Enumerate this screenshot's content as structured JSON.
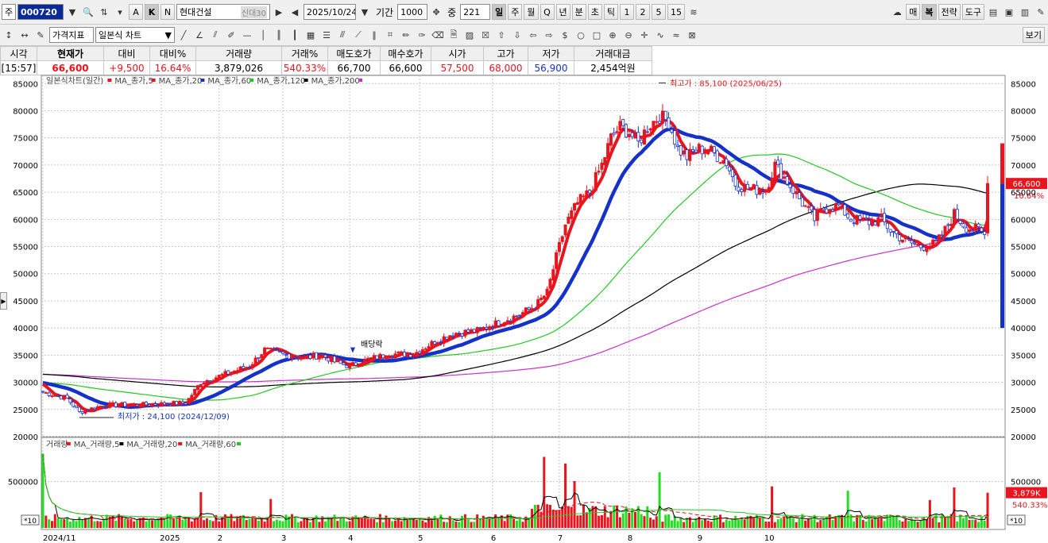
{
  "toolbar": {
    "market_label": "주",
    "code": "000720",
    "abk_buttons": [
      "A",
      "K",
      "N"
    ],
    "stock_name": "현대건설",
    "credit_badge": "신",
    "credit_badge2": "대",
    "credit_badge3": "30",
    "date": "2025/10/24",
    "period_label": "기간",
    "period_value": "1000",
    "middle_label": "중",
    "middle_value": "221",
    "intervals": [
      "일",
      "주",
      "월",
      "Q",
      "년",
      "분",
      "초",
      "틱",
      "1",
      "2",
      "5",
      "15"
    ],
    "right_buttons": [
      "매",
      "복",
      "전략",
      "도구"
    ]
  },
  "toolbar2": {
    "price_indicator": "가격지표",
    "chart_type": "일본식 차트",
    "view_button": "보기"
  },
  "quote": {
    "headers": [
      "시각",
      "현재가",
      "대비",
      "대비%",
      "거래량",
      "거래%",
      "매도호가",
      "매수호가",
      "시가",
      "고가",
      "저가",
      "거래대금"
    ],
    "values": [
      "[15:57]",
      "66,600",
      "+9,500",
      "16.64%",
      "3,879,026",
      "540.33%",
      "66,700",
      "66,600",
      "57,500",
      "68,000",
      "56,900",
      "2,454억원"
    ]
  },
  "colors": {
    "up": "#e8141e",
    "down": "#1432c8",
    "ma5": "#e8141e",
    "ma20": "#1432c8",
    "ma60": "#22c822",
    "ma120": "#000000",
    "ma200": "#c832c8",
    "vol_up": "#e8141e",
    "vol_down": "#22dd22"
  },
  "chart_data": [
    {
      "type": "candlestick",
      "legend": [
        {
          "name": "일본식차트(일간)",
          "color": "#e8141e"
        },
        {
          "name": "MA_종가,5",
          "color": "#e8141e"
        },
        {
          "name": "MA_종가,20",
          "color": "#1432c8"
        },
        {
          "name": "MA_종가,60",
          "color": "#22c822"
        },
        {
          "name": "MA_종가,120",
          "color": "#000000"
        },
        {
          "name": "MA_종가,200",
          "color": "#c832c8"
        }
      ],
      "y_ticks": [
        "85000",
        "80000",
        "75000",
        "70000",
        "65000",
        "60000",
        "55000",
        "50000",
        "45000",
        "40000",
        "35000",
        "30000",
        "25000",
        "20000"
      ],
      "ylim": [
        20000,
        86500
      ],
      "x_ticks": [
        "2024/11",
        "2025",
        "2",
        "3",
        "4",
        "5",
        "6",
        "7",
        "8",
        "9",
        "10"
      ],
      "anchors": [
        {
          "i": 0,
          "v": 28200
        },
        {
          "i": 8,
          "v": 27000
        },
        {
          "i": 12,
          "v": 24500
        },
        {
          "i": 20,
          "v": 25800
        },
        {
          "i": 34,
          "v": 25900
        },
        {
          "i": 47,
          "v": 26200
        },
        {
          "i": 52,
          "v": 30000
        },
        {
          "i": 60,
          "v": 31500
        },
        {
          "i": 68,
          "v": 33000
        },
        {
          "i": 73,
          "v": 36000
        },
        {
          "i": 80,
          "v": 35000
        },
        {
          "i": 86,
          "v": 34500
        },
        {
          "i": 92,
          "v": 35000
        },
        {
          "i": 97,
          "v": 33500
        },
        {
          "i": 101,
          "v": 33000
        },
        {
          "i": 107,
          "v": 34200
        },
        {
          "i": 114,
          "v": 35200
        },
        {
          "i": 122,
          "v": 35200
        },
        {
          "i": 129,
          "v": 37500
        },
        {
          "i": 135,
          "v": 39000
        },
        {
          "i": 143,
          "v": 39500
        },
        {
          "i": 150,
          "v": 41000
        },
        {
          "i": 157,
          "v": 42500
        },
        {
          "i": 162,
          "v": 44000
        },
        {
          "i": 166,
          "v": 46500
        },
        {
          "i": 169,
          "v": 53000
        },
        {
          "i": 172,
          "v": 59000
        },
        {
          "i": 176,
          "v": 63000
        },
        {
          "i": 180,
          "v": 65000
        },
        {
          "i": 184,
          "v": 70000
        },
        {
          "i": 187,
          "v": 75000
        },
        {
          "i": 190,
          "v": 77000
        },
        {
          "i": 193,
          "v": 76000
        },
        {
          "i": 196,
          "v": 74000
        },
        {
          "i": 199,
          "v": 77000
        },
        {
          "i": 203,
          "v": 79000
        },
        {
          "i": 206,
          "v": 78000
        },
        {
          "i": 209,
          "v": 73000
        },
        {
          "i": 212,
          "v": 71500
        },
        {
          "i": 216,
          "v": 73000
        },
        {
          "i": 220,
          "v": 72500
        },
        {
          "i": 225,
          "v": 70500
        },
        {
          "i": 228,
          "v": 66500
        },
        {
          "i": 233,
          "v": 65500
        },
        {
          "i": 238,
          "v": 65500
        },
        {
          "i": 241,
          "v": 70000
        },
        {
          "i": 245,
          "v": 67000
        },
        {
          "i": 250,
          "v": 63000
        },
        {
          "i": 254,
          "v": 60000
        },
        {
          "i": 257,
          "v": 62000
        },
        {
          "i": 262,
          "v": 62500
        },
        {
          "i": 266,
          "v": 60000
        },
        {
          "i": 272,
          "v": 59500
        },
        {
          "i": 276,
          "v": 60000
        },
        {
          "i": 279,
          "v": 58000
        },
        {
          "i": 284,
          "v": 56000
        },
        {
          "i": 289,
          "v": 55000
        },
        {
          "i": 294,
          "v": 55500
        },
        {
          "i": 297,
          "v": 58000
        },
        {
          "i": 300,
          "v": 61000
        },
        {
          "i": 304,
          "v": 58500
        },
        {
          "i": 308,
          "v": 58000
        },
        {
          "i": 310,
          "v": 57100
        },
        {
          "i": 311,
          "v": 66600
        }
      ],
      "annotations": [
        {
          "label": "최고가 : 85,100 (2025/06/25)",
          "value": 85100
        },
        {
          "label": "최저가 : 24,100 (2024/12/09)",
          "value": 24100
        },
        {
          "label": "배당락"
        }
      ],
      "last_price_label": "66,600",
      "last_change_label": "16.64%"
    },
    {
      "type": "bar",
      "legend": [
        {
          "name": "거래량",
          "color": "#e8141e"
        },
        {
          "name": "MA_거래량,5",
          "color": "#000000"
        },
        {
          "name": "MA_거래량,20",
          "color": "#e8141e"
        },
        {
          "name": "MA_거래량,60",
          "color": "#22c822"
        }
      ],
      "y_ticks": [
        "500000"
      ],
      "unit_label": "*10",
      "last_volume_label": "3,879K",
      "last_volume_pct": "540.33%"
    }
  ]
}
